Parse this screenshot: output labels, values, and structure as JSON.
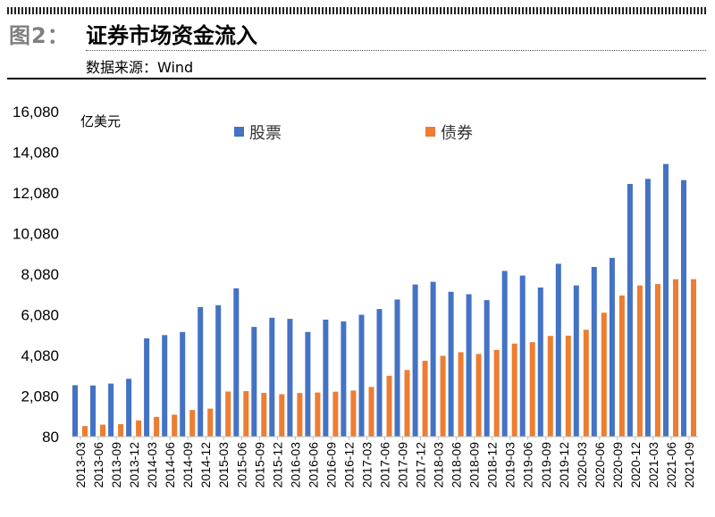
{
  "header": {
    "figure_label": "图2：",
    "title": "证券市场资金流入",
    "source": "数据来源：Wind"
  },
  "chart_data": {
    "type": "bar",
    "unit_label": "亿美元",
    "categories": [
      "2013-03",
      "2013-06",
      "2013-09",
      "2013-12",
      "2014-03",
      "2014-06",
      "2014-09",
      "2014-12",
      "2015-03",
      "2015-06",
      "2015-09",
      "2015-12",
      "2016-03",
      "2016-06",
      "2016-09",
      "2016-12",
      "2017-03",
      "2017-06",
      "2017-09",
      "2017-12",
      "2018-03",
      "2018-06",
      "2018-09",
      "2018-12",
      "2019-03",
      "2019-06",
      "2019-09",
      "2019-12",
      "2020-03",
      "2020-06",
      "2020-09",
      "2020-12",
      "2021-03",
      "2021-06",
      "2021-09"
    ],
    "series": [
      {
        "name": "股票",
        "color": "#4472c4",
        "values": [
          2610,
          2600,
          2690,
          2930,
          4920,
          5080,
          5230,
          6460,
          6550,
          7380,
          5480,
          5930,
          5880,
          5230,
          5840,
          5750,
          6080,
          6360,
          6830,
          7570,
          7700,
          7210,
          7090,
          6800,
          8240,
          8010,
          7420,
          8590,
          7520,
          8430,
          8880,
          12520,
          12770,
          13500,
          12710
        ]
      },
      {
        "name": "债券",
        "color": "#ed7d31",
        "values": [
          600,
          670,
          700,
          880,
          1050,
          1160,
          1390,
          1460,
          2300,
          2320,
          2230,
          2170,
          2230,
          2250,
          2290,
          2350,
          2530,
          3080,
          3360,
          3810,
          4060,
          4240,
          4150,
          4350,
          4660,
          4730,
          5040,
          5050,
          5340,
          6180,
          7030,
          7520,
          7590,
          7830,
          7830
        ]
      }
    ],
    "y_ticks": [
      "80",
      "2,080",
      "4,080",
      "6,080",
      "8,080",
      "10,080",
      "12,080",
      "14,080",
      "16,080"
    ],
    "ylim": [
      80,
      16080
    ],
    "legend_position": "top-center",
    "grid": false
  }
}
